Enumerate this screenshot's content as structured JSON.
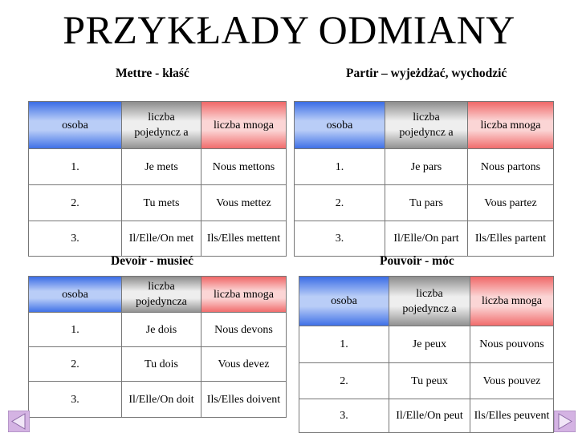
{
  "title": "PRZYKŁADY ODMIANY",
  "headers": {
    "person": "osoba",
    "singular": "liczba pojedyncz a",
    "singular_alt": "liczba pojedyncza",
    "plural": "liczba mnoga"
  },
  "tables": [
    {
      "label": "Mettre - kłaść",
      "rows": [
        {
          "p": "1.",
          "s": "Je mets",
          "pl": "Nous mettons"
        },
        {
          "p": "2.",
          "s": "Tu mets",
          "pl": "Vous mettez"
        },
        {
          "p": "3.",
          "s": "Il/Elle/On met",
          "pl": "Ils/Elles mettent"
        }
      ]
    },
    {
      "label": "Partir – wyjeżdżać, wychodzić",
      "rows": [
        {
          "p": "1.",
          "s": "Je pars",
          "pl": "Nous partons"
        },
        {
          "p": "2.",
          "s": "Tu pars",
          "pl": "Vous partez"
        },
        {
          "p": "3.",
          "s": "Il/Elle/On part",
          "pl": "Ils/Elles partent"
        }
      ]
    },
    {
      "label": "Devoir - musieć",
      "rows": [
        {
          "p": "1.",
          "s": "Je dois",
          "pl": "Nous devons"
        },
        {
          "p": "2.",
          "s": "Tu dois",
          "pl": "Vous devez"
        },
        {
          "p": "3.",
          "s": "Il/Elle/On doit",
          "pl": "Ils/Elles doivent"
        }
      ]
    },
    {
      "label": "Pouvoir - móc",
      "rows": [
        {
          "p": "1.",
          "s": "Je peux",
          "pl": "Nous pouvons"
        },
        {
          "p": "2.",
          "s": "Tu peux",
          "pl": "Vous pouvez"
        },
        {
          "p": "3.",
          "s": "Il/Elle/On peut",
          "pl": "Ils/Elles peuvent"
        }
      ]
    }
  ],
  "nav": {
    "prev_icon": "triangle-left-icon",
    "next_icon": "triangle-right-icon",
    "color": "#d4b3e3"
  }
}
